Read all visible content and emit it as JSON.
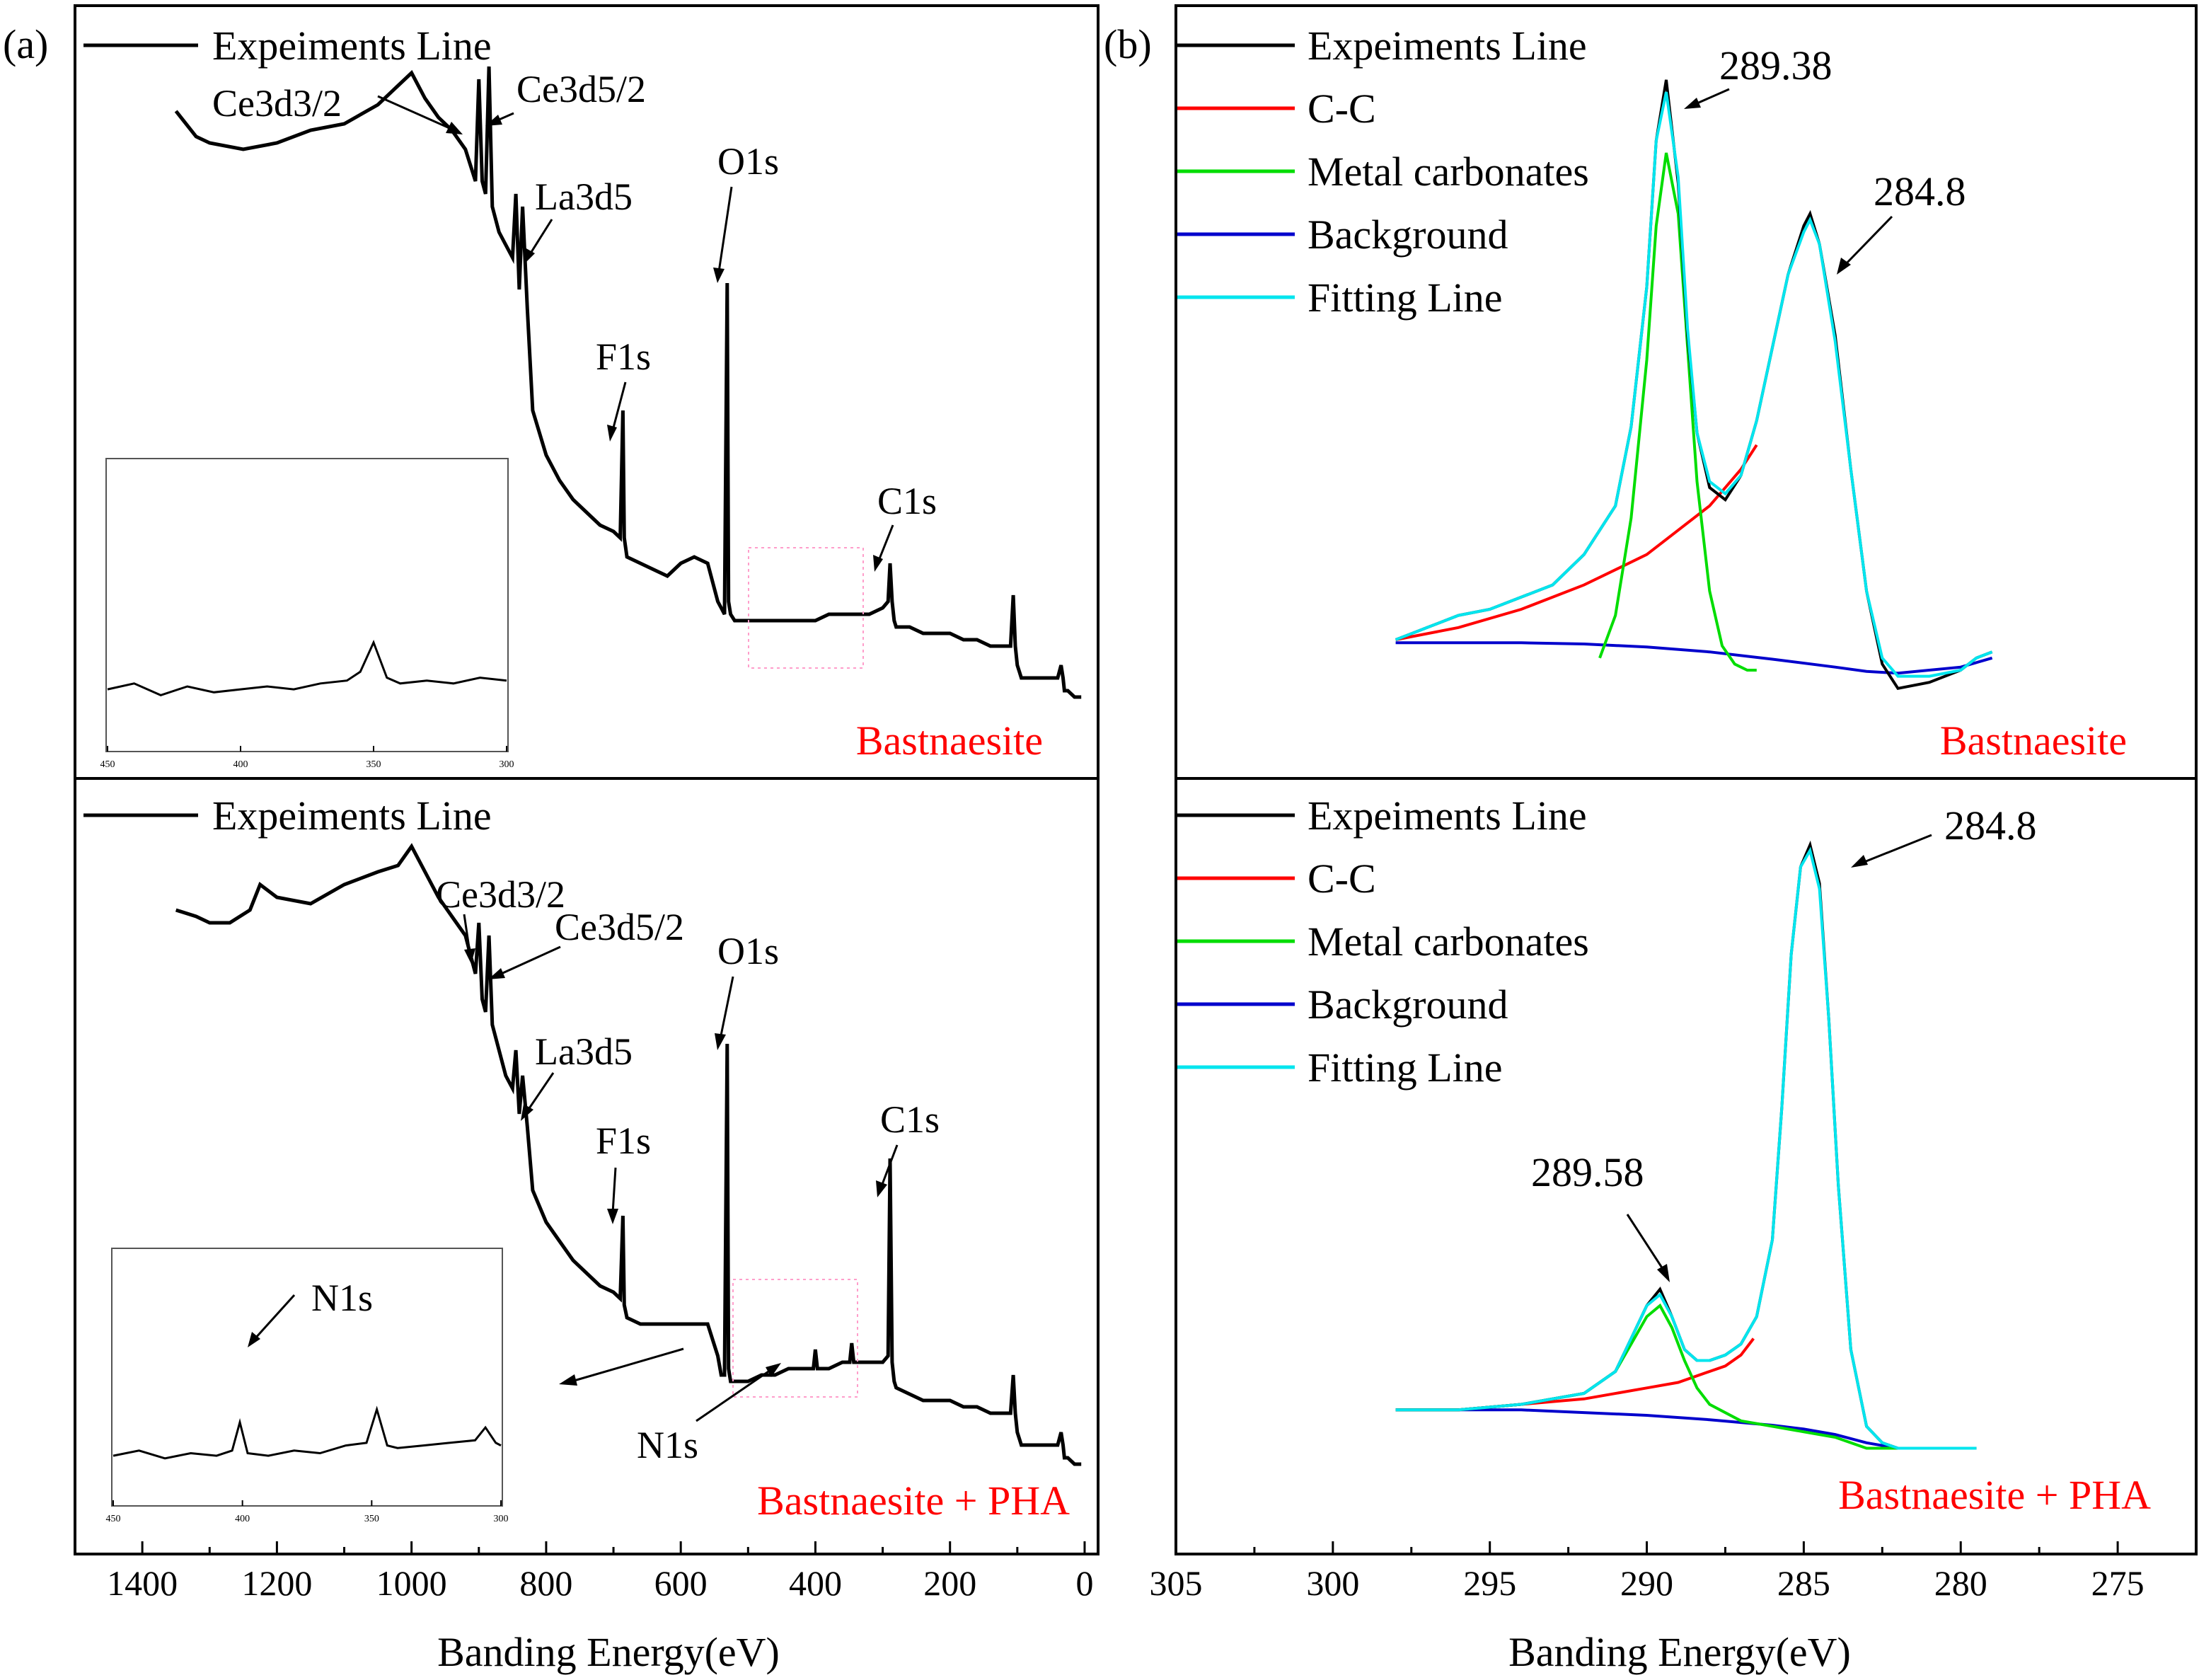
{
  "figure": {
    "panel_a_label": "(a)",
    "panel_b_label": "(b)",
    "xlabel": "Banding Energy(eV)"
  },
  "colors": {
    "experiment": "#000000",
    "cc": "#ff0000",
    "carbonates": "#00dd00",
    "background": "#0000cc",
    "fitting": "#00e5ee",
    "sample_label": "#ff0000",
    "inset_box": "#ff9ecb"
  },
  "chart_data": [
    {
      "type": "line",
      "panel": "a-top",
      "sample_label": "Bastnaesite",
      "xlabel": "Banding Energy(eV)",
      "xlim": [
        1500,
        -20
      ],
      "x_ticks": [
        1400,
        1200,
        1000,
        800,
        600,
        400,
        200,
        0
      ],
      "legend": [
        "Expeiments Line"
      ],
      "series": [
        {
          "name": "Expeiments Line",
          "x": [
            1350,
            1320,
            1300,
            1250,
            1200,
            1150,
            1100,
            1050,
            1020,
            1000,
            980,
            960,
            940,
            920,
            905,
            900,
            895,
            890,
            885,
            880,
            870,
            860,
            850,
            845,
            840,
            835,
            828,
            820,
            800,
            780,
            760,
            740,
            720,
            700,
            690,
            686,
            684,
            680,
            660,
            640,
            620,
            600,
            580,
            560,
            545,
            540,
            535,
            531,
            529,
            526,
            520,
            500,
            480,
            460,
            440,
            420,
            400,
            380,
            360,
            340,
            320,
            300,
            292,
            289,
            286,
            283,
            280,
            260,
            240,
            220,
            200,
            180,
            160,
            140,
            120,
            110,
            106,
            103,
            100,
            97,
            94,
            80,
            60,
            40,
            35,
            32,
            30,
            25,
            15,
            5
          ],
          "y": [
            0.91,
            0.87,
            0.86,
            0.85,
            0.86,
            0.88,
            0.89,
            0.92,
            0.95,
            0.97,
            0.93,
            0.9,
            0.88,
            0.85,
            0.8,
            0.96,
            0.8,
            0.78,
            0.98,
            0.76,
            0.72,
            0.7,
            0.68,
            0.78,
            0.63,
            0.76,
            0.6,
            0.44,
            0.37,
            0.33,
            0.3,
            0.28,
            0.26,
            0.25,
            0.24,
            0.44,
            0.24,
            0.21,
            0.2,
            0.19,
            0.18,
            0.2,
            0.21,
            0.2,
            0.14,
            0.13,
            0.12,
            0.64,
            0.14,
            0.12,
            0.11,
            0.11,
            0.11,
            0.11,
            0.11,
            0.11,
            0.11,
            0.12,
            0.12,
            0.12,
            0.12,
            0.13,
            0.14,
            0.2,
            0.14,
            0.11,
            0.1,
            0.1,
            0.09,
            0.09,
            0.09,
            0.08,
            0.08,
            0.07,
            0.07,
            0.07,
            0.15,
            0.07,
            0.04,
            0.03,
            0.02,
            0.02,
            0.02,
            0.02,
            0.04,
            0.02,
            0.0,
            0.0,
            -0.01,
            -0.01
          ]
        }
      ],
      "annotations": [
        "Ce3d3/2",
        "Ce3d5/2",
        "La3d5",
        "O1s",
        "F1s",
        "C1s"
      ],
      "inset": {
        "x_ticks": [
          450,
          400,
          350,
          300
        ],
        "xlim": [
          450,
          300
        ],
        "x": [
          450,
          440,
          430,
          420,
          410,
          400,
          390,
          380,
          370,
          360,
          355,
          350,
          345,
          340,
          330,
          320,
          310,
          300
        ],
        "y": [
          0.42,
          0.44,
          0.4,
          0.43,
          0.41,
          0.42,
          0.43,
          0.42,
          0.44,
          0.45,
          0.48,
          0.58,
          0.46,
          0.44,
          0.45,
          0.44,
          0.46,
          0.45
        ]
      }
    },
    {
      "type": "line",
      "panel": "a-bottom",
      "sample_label": "Bastnaesite + PHA",
      "xlabel": "Banding Energy(eV)",
      "xlim": [
        1500,
        -20
      ],
      "x_ticks": [
        1400,
        1200,
        1000,
        800,
        600,
        400,
        200,
        0
      ],
      "legend": [
        "Expeiments Line"
      ],
      "series": [
        {
          "name": "Expeiments Line",
          "x": [
            1350,
            1320,
            1300,
            1270,
            1240,
            1225,
            1200,
            1150,
            1100,
            1050,
            1020,
            1000,
            980,
            960,
            940,
            920,
            905,
            900,
            895,
            890,
            885,
            880,
            870,
            860,
            850,
            845,
            840,
            835,
            828,
            820,
            800,
            780,
            760,
            740,
            720,
            700,
            690,
            686,
            684,
            680,
            660,
            640,
            620,
            600,
            580,
            560,
            545,
            540,
            535,
            531,
            529,
            526,
            520,
            500,
            480,
            460,
            440,
            420,
            403,
            400,
            397,
            380,
            360,
            349,
            346,
            343,
            320,
            300,
            292,
            289,
            286,
            283,
            280,
            260,
            240,
            220,
            200,
            180,
            160,
            140,
            120,
            110,
            106,
            103,
            100,
            97,
            94,
            80,
            60,
            40,
            35,
            32,
            30,
            25,
            15,
            5
          ],
          "y": [
            0.86,
            0.85,
            0.84,
            0.84,
            0.86,
            0.9,
            0.88,
            0.87,
            0.9,
            0.92,
            0.93,
            0.96,
            0.92,
            0.88,
            0.85,
            0.82,
            0.76,
            0.84,
            0.72,
            0.7,
            0.82,
            0.68,
            0.64,
            0.6,
            0.58,
            0.64,
            0.54,
            0.6,
            0.52,
            0.42,
            0.37,
            0.34,
            0.31,
            0.29,
            0.27,
            0.26,
            0.25,
            0.38,
            0.24,
            0.22,
            0.21,
            0.21,
            0.21,
            0.21,
            0.21,
            0.21,
            0.16,
            0.13,
            0.13,
            0.65,
            0.14,
            0.12,
            0.12,
            0.12,
            0.13,
            0.13,
            0.14,
            0.14,
            0.14,
            0.17,
            0.14,
            0.14,
            0.15,
            0.15,
            0.18,
            0.15,
            0.15,
            0.15,
            0.16,
            0.47,
            0.15,
            0.12,
            0.11,
            0.1,
            0.09,
            0.09,
            0.09,
            0.08,
            0.08,
            0.07,
            0.07,
            0.07,
            0.13,
            0.07,
            0.04,
            0.03,
            0.02,
            0.02,
            0.02,
            0.02,
            0.04,
            0.02,
            0.0,
            0.0,
            -0.01,
            -0.01
          ]
        }
      ],
      "annotations": [
        "Ce3d3/2",
        "Ce3d5/2",
        "La3d5",
        "O1s",
        "F1s",
        "C1s",
        "N1s"
      ],
      "inset": {
        "x_ticks": [
          450,
          400,
          350,
          300
        ],
        "xlim": [
          450,
          300
        ],
        "annotation": "N1s",
        "x": [
          450,
          440,
          430,
          420,
          410,
          404,
          401,
          398,
          390,
          380,
          370,
          360,
          352,
          348,
          344,
          340,
          330,
          320,
          310,
          306,
          302,
          300
        ],
        "y": [
          0.42,
          0.44,
          0.41,
          0.43,
          0.42,
          0.44,
          0.55,
          0.43,
          0.42,
          0.44,
          0.43,
          0.46,
          0.47,
          0.6,
          0.46,
          0.45,
          0.46,
          0.47,
          0.48,
          0.53,
          0.47,
          0.46
        ]
      }
    },
    {
      "type": "line",
      "panel": "b-top",
      "sample_label": "Bastnaesite",
      "xlabel": "Banding Energy(eV)",
      "xlim": [
        305,
        272.5
      ],
      "x_ticks": [
        305,
        300,
        295,
        290,
        285,
        280,
        275
      ],
      "peaks": [
        289.38,
        284.8
      ],
      "peak_labels": [
        "289.38",
        "284.8"
      ],
      "legend": [
        "Expeiments Line",
        "C-C",
        "Metal carbonates",
        "Background",
        "Fitting Line"
      ],
      "series": [
        {
          "name": "Expeiments Line",
          "x": [
            298,
            297,
            296,
            295,
            294,
            293,
            292,
            291,
            290.5,
            290,
            289.7,
            289.38,
            289,
            288.7,
            288.4,
            288,
            287.5,
            287,
            286.5,
            286,
            285.5,
            285,
            284.8,
            284.5,
            284,
            283.5,
            283,
            282.5,
            282,
            281,
            280,
            279.5,
            279
          ],
          "y": [
            0.1,
            0.12,
            0.14,
            0.15,
            0.17,
            0.19,
            0.24,
            0.32,
            0.45,
            0.68,
            0.92,
            1.02,
            0.85,
            0.6,
            0.44,
            0.35,
            0.33,
            0.37,
            0.46,
            0.58,
            0.7,
            0.78,
            0.8,
            0.75,
            0.6,
            0.38,
            0.18,
            0.06,
            0.02,
            0.03,
            0.05,
            0.07,
            0.08
          ]
        },
        {
          "name": "C-C",
          "x": [
            298,
            296,
            294,
            292,
            290,
            289,
            288,
            287.5,
            287,
            286.5
          ],
          "y": [
            0.1,
            0.12,
            0.15,
            0.19,
            0.24,
            0.28,
            0.32,
            0.35,
            0.38,
            0.42
          ]
        },
        {
          "name": "Metal carbonates",
          "x": [
            291.5,
            291,
            290.5,
            290,
            289.7,
            289.38,
            289,
            288.7,
            288.4,
            288,
            287.6,
            287.2,
            286.8,
            286.5
          ],
          "y": [
            0.07,
            0.14,
            0.3,
            0.56,
            0.78,
            0.9,
            0.8,
            0.58,
            0.36,
            0.18,
            0.09,
            0.06,
            0.05,
            0.05
          ]
        },
        {
          "name": "Background",
          "x": [
            298,
            296,
            294,
            292,
            290,
            288,
            286,
            284,
            283,
            282,
            280,
            279
          ],
          "y": [
            0.095,
            0.095,
            0.095,
            0.093,
            0.088,
            0.08,
            0.068,
            0.055,
            0.048,
            0.045,
            0.055,
            0.07
          ]
        },
        {
          "name": "Fitting Line",
          "x": [
            298,
            297,
            296,
            295,
            294,
            293,
            292,
            291,
            290.5,
            290,
            289.7,
            289.38,
            289,
            288.7,
            288.4,
            288,
            287.5,
            287,
            286.5,
            286,
            285.5,
            285,
            284.8,
            284.5,
            284,
            283.5,
            283,
            282.5,
            282,
            281,
            280,
            279.5,
            279
          ],
          "y": [
            0.1,
            0.12,
            0.14,
            0.15,
            0.17,
            0.19,
            0.24,
            0.32,
            0.45,
            0.68,
            0.92,
            1.0,
            0.86,
            0.61,
            0.44,
            0.36,
            0.34,
            0.37,
            0.46,
            0.58,
            0.7,
            0.77,
            0.79,
            0.75,
            0.59,
            0.38,
            0.18,
            0.07,
            0.04,
            0.04,
            0.05,
            0.07,
            0.08
          ]
        }
      ]
    },
    {
      "type": "line",
      "panel": "b-bottom",
      "sample_label": "Bastnaesite + PHA",
      "xlabel": "Banding Energy(eV)",
      "xlim": [
        305,
        272.5
      ],
      "x_ticks": [
        305,
        300,
        295,
        290,
        285,
        280,
        275
      ],
      "peaks": [
        289.58,
        284.8
      ],
      "peak_labels": [
        "289.58",
        "284.8"
      ],
      "legend": [
        "Expeiments Line",
        "C-C",
        "Metal carbonates",
        "Background",
        "Fitting Line"
      ],
      "series": [
        {
          "name": "Expeiments Line",
          "x": [
            298,
            296,
            294,
            292,
            291,
            290.5,
            290,
            289.58,
            289.2,
            288.8,
            288.4,
            288,
            287.5,
            287,
            286.5,
            286,
            285.7,
            285.4,
            285.1,
            284.8,
            284.5,
            284.2,
            283.9,
            283.5,
            283,
            282.5,
            282,
            281,
            280,
            279.5
          ],
          "y": [
            0.09,
            0.09,
            0.1,
            0.12,
            0.16,
            0.22,
            0.28,
            0.31,
            0.26,
            0.2,
            0.18,
            0.18,
            0.19,
            0.21,
            0.26,
            0.4,
            0.64,
            0.92,
            1.08,
            1.12,
            1.05,
            0.8,
            0.5,
            0.2,
            0.06,
            0.03,
            0.02,
            0.02,
            0.02,
            0.02
          ]
        },
        {
          "name": "C-C",
          "x": [
            298,
            296,
            294,
            292,
            290,
            289,
            288,
            287.5,
            287,
            286.6
          ],
          "y": [
            0.09,
            0.09,
            0.1,
            0.11,
            0.13,
            0.14,
            0.16,
            0.17,
            0.19,
            0.22
          ]
        },
        {
          "name": "Metal carbonates",
          "x": [
            298,
            296,
            294,
            292,
            291,
            290.5,
            290,
            289.58,
            289.2,
            288.8,
            288.4,
            288,
            287,
            286,
            285,
            284,
            283,
            282,
            280,
            279.5
          ],
          "y": [
            0.09,
            0.09,
            0.1,
            0.12,
            0.16,
            0.21,
            0.26,
            0.28,
            0.24,
            0.18,
            0.13,
            0.1,
            0.07,
            0.06,
            0.05,
            0.04,
            0.02,
            0.02,
            0.02,
            0.02
          ]
        },
        {
          "name": "Background",
          "x": [
            298,
            296,
            294,
            292,
            290,
            288,
            286,
            285,
            284,
            283,
            282,
            280,
            279.5
          ],
          "y": [
            0.09,
            0.09,
            0.09,
            0.085,
            0.08,
            0.072,
            0.062,
            0.055,
            0.045,
            0.03,
            0.02,
            0.02,
            0.02
          ]
        },
        {
          "name": "Fitting Line",
          "x": [
            298,
            296,
            294,
            292,
            291,
            290.5,
            290,
            289.58,
            289.2,
            288.8,
            288.4,
            288,
            287.5,
            287,
            286.5,
            286,
            285.7,
            285.4,
            285.1,
            284.8,
            284.5,
            284.2,
            283.9,
            283.5,
            283,
            282.5,
            282,
            281,
            280,
            279.5
          ],
          "y": [
            0.09,
            0.09,
            0.1,
            0.12,
            0.16,
            0.22,
            0.28,
            0.3,
            0.26,
            0.2,
            0.18,
            0.18,
            0.19,
            0.21,
            0.26,
            0.4,
            0.64,
            0.92,
            1.08,
            1.11,
            1.04,
            0.8,
            0.5,
            0.2,
            0.06,
            0.03,
            0.02,
            0.02,
            0.02,
            0.02
          ]
        }
      ]
    }
  ]
}
